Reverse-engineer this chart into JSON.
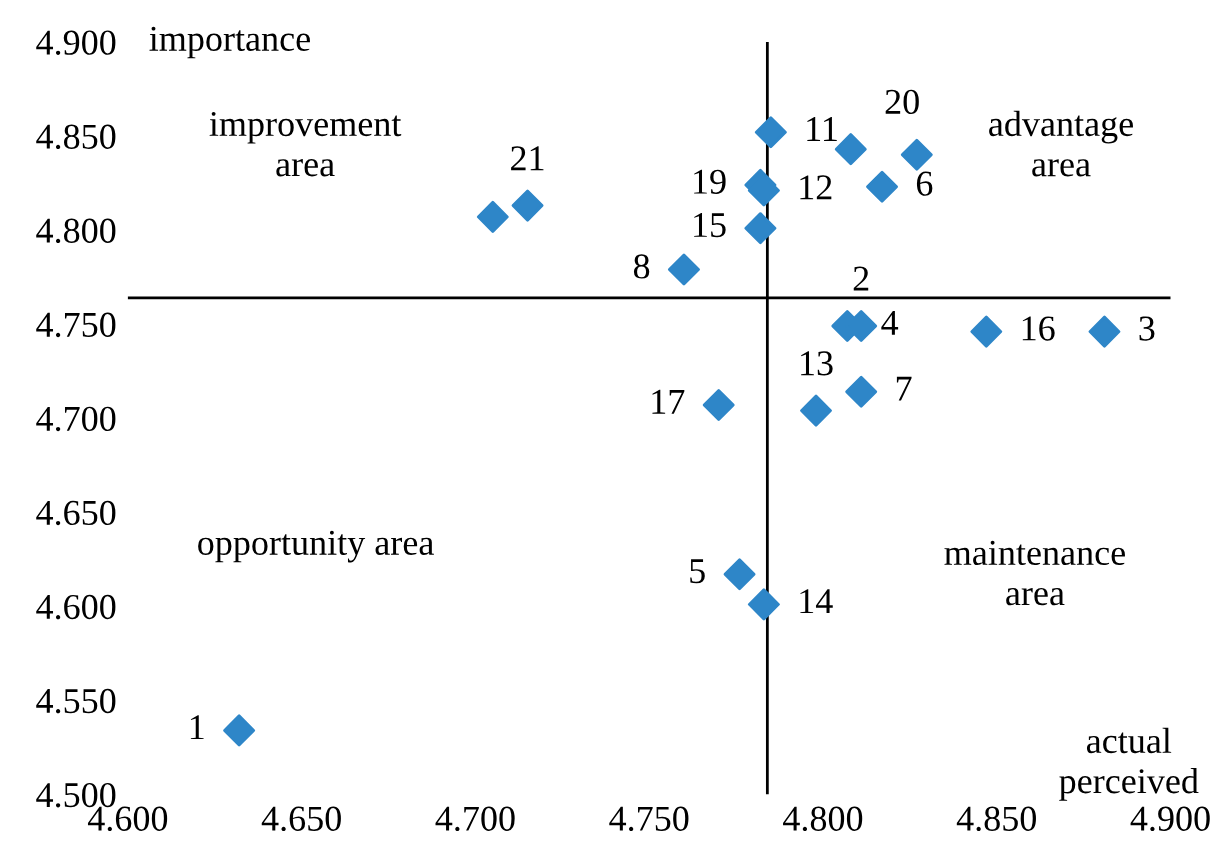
{
  "chart_data": {
    "type": "scatter",
    "xlabel": "actual\nperceived",
    "ylabel": "importance",
    "x": [
      4.632,
      4.705,
      4.715,
      4.76,
      4.785,
      4.782,
      4.783,
      4.782,
      4.808,
      4.817,
      4.827,
      4.807,
      4.811,
      4.847,
      4.881,
      4.77,
      4.798,
      4.811,
      4.776,
      4.783
    ],
    "series": [
      {
        "color": "#2e86c8",
        "values": [
          4.534,
          4.807,
          4.813,
          4.779,
          4.852,
          4.824,
          4.821,
          4.801,
          4.843,
          4.823,
          4.84,
          4.749,
          4.749,
          4.746,
          4.746,
          4.707,
          4.704,
          4.714,
          4.617,
          4.601
        ]
      }
    ],
    "marker": "diamond",
    "xlim": [
      4.6,
      4.9
    ],
    "ylim": [
      4.5,
      4.9
    ],
    "xticks": [
      {
        "value": 4.6,
        "label": "4.600"
      },
      {
        "value": 4.65,
        "label": "4.650"
      },
      {
        "value": 4.7,
        "label": "4.700"
      },
      {
        "value": 4.75,
        "label": "4.750"
      },
      {
        "value": 4.8,
        "label": "4.800"
      },
      {
        "value": 4.85,
        "label": "4.850"
      },
      {
        "value": 4.9,
        "label": "4.900"
      }
    ],
    "yticks": [
      {
        "value": 4.5,
        "label": "4.500"
      },
      {
        "value": 4.55,
        "label": "4.550"
      },
      {
        "value": 4.6,
        "label": "4.600"
      },
      {
        "value": 4.65,
        "label": "4.650"
      },
      {
        "value": 4.7,
        "label": "4.700"
      },
      {
        "value": 4.75,
        "label": "4.750"
      },
      {
        "value": 4.8,
        "label": "4.800"
      },
      {
        "value": 4.85,
        "label": "4.850"
      },
      {
        "value": 4.9,
        "label": "4.900"
      }
    ],
    "ref_lines": [
      {
        "axis": "x",
        "value": 4.784,
        "color": "#000000"
      },
      {
        "axis": "y",
        "value": 4.764,
        "color": "#000000"
      }
    ],
    "grid": false,
    "annotations": [
      {
        "text": "1",
        "x": 4.632,
        "y": 4.534
      },
      {
        "text": "21",
        "x": 4.715,
        "y": 4.813
      },
      {
        "text": "8",
        "x": 4.76,
        "y": 4.779
      },
      {
        "text": "11",
        "x": 4.785,
        "y": 4.852
      },
      {
        "text": "19",
        "x": 4.782,
        "y": 4.824
      },
      {
        "text": "12",
        "x": 4.783,
        "y": 4.821
      },
      {
        "text": "15",
        "x": 4.782,
        "y": 4.801
      },
      {
        "text": "20",
        "x": 4.808,
        "y": 4.843
      },
      {
        "text": "6",
        "x": 4.817,
        "y": 4.823
      },
      {
        "text": "4",
        "x": 4.807,
        "y": 4.749
      },
      {
        "text": "2",
        "x": 4.811,
        "y": 4.749
      },
      {
        "text": "16",
        "x": 4.847,
        "y": 4.746
      },
      {
        "text": "3",
        "x": 4.881,
        "y": 4.746
      },
      {
        "text": "17",
        "x": 4.77,
        "y": 4.707
      },
      {
        "text": "13",
        "x": 4.798,
        "y": 4.704
      },
      {
        "text": "7",
        "x": 4.811,
        "y": 4.714
      },
      {
        "text": "5",
        "x": 4.776,
        "y": 4.617
      },
      {
        "text": "14",
        "x": 4.783,
        "y": 4.601
      },
      "improvement\narea",
      "advantage\narea",
      "opportunity area",
      "maintenance\narea"
    ]
  }
}
